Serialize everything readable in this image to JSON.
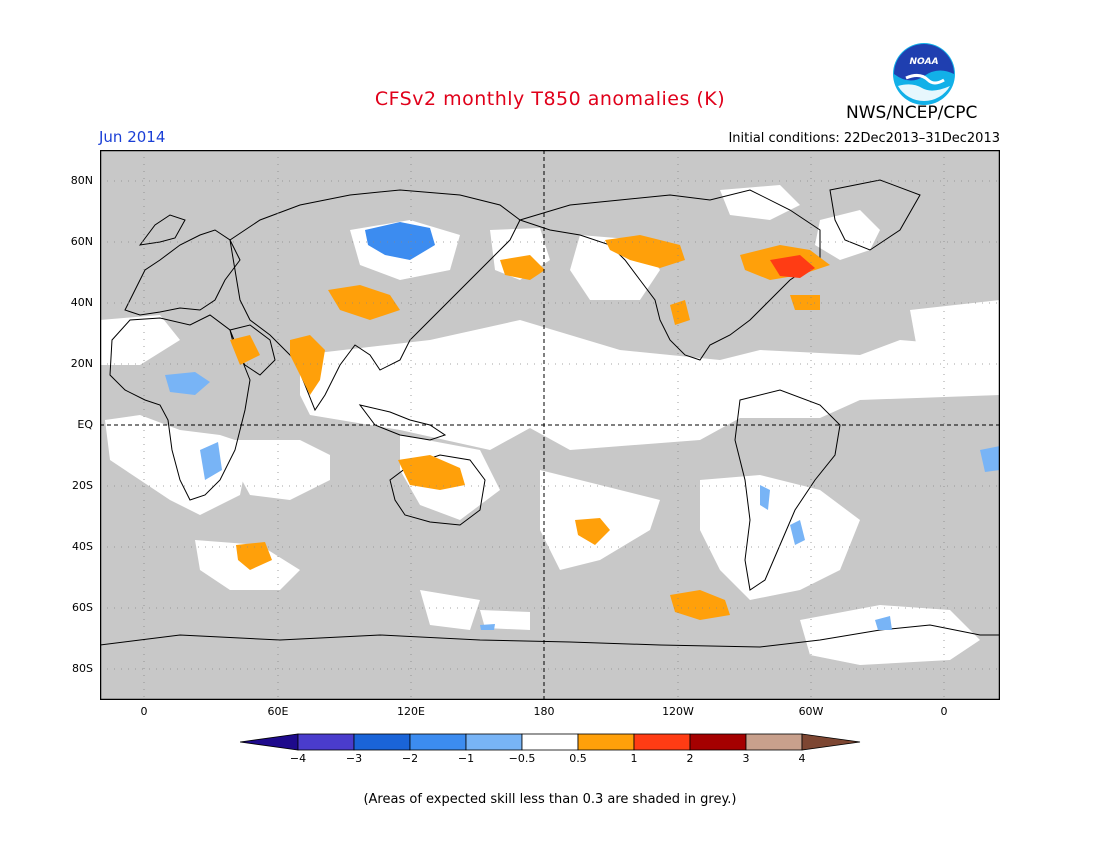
{
  "title": "CFSv2 monthly T850 anomalies (K)",
  "period": "Jun 2014",
  "org": "NWS/NCEP/CPC",
  "logo_text": "NOAA",
  "initial_conditions": "Initial conditions: 22Dec2013–31Dec2013",
  "footnote": "(Areas of expected skill less than 0.3 are shaded in grey.)",
  "map": {
    "lat_labels": [
      "80N",
      "60N",
      "40N",
      "20N",
      "EQ",
      "20S",
      "40S",
      "60S",
      "80S"
    ],
    "lon_labels": [
      "0",
      "60E",
      "120E",
      "180",
      "120W",
      "60W",
      "0"
    ],
    "lat_values": [
      80,
      60,
      40,
      20,
      0,
      -20,
      -40,
      -60,
      -80
    ],
    "lon_values": [
      0,
      60,
      120,
      180,
      240,
      300,
      360
    ],
    "grey_color": "#c8c8c8",
    "ocean_color": "#ffffff"
  },
  "colorbar": {
    "labels": [
      "−4",
      "−3",
      "−2",
      "−1",
      "−0.5",
      "0.5",
      "1",
      "2",
      "3",
      "4"
    ],
    "colors": [
      "#1e0a8c",
      "#4a3ccc",
      "#1a64d8",
      "#3c8cf0",
      "#78b4f6",
      "#ffffff",
      "#ffa00a",
      "#ff3c14",
      "#a50000",
      "#c8a08c",
      "#7d4632"
    ]
  }
}
